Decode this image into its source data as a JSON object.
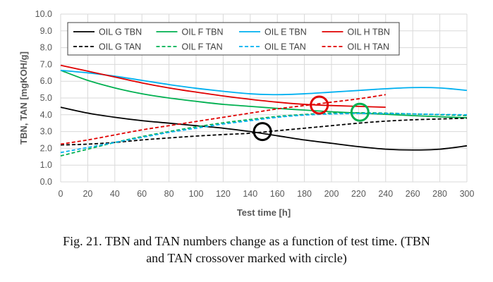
{
  "chart_data": {
    "type": "line",
    "xlabel": "Test time [h]",
    "ylabel": "TBN, TAN [mgKOH/g]",
    "xlim": [
      0,
      300
    ],
    "ylim": [
      0,
      10
    ],
    "xticks": [
      0,
      20,
      40,
      60,
      80,
      100,
      120,
      140,
      160,
      180,
      200,
      220,
      240,
      260,
      280,
      300
    ],
    "yticks": [
      "0.0",
      "1.0",
      "2.0",
      "3.0",
      "4.0",
      "5.0",
      "6.0",
      "7.0",
      "8.0",
      "9.0",
      "10.0"
    ],
    "grid": true,
    "legend_position": "top-left",
    "series": [
      {
        "name": "OIL G TBN",
        "color": "#000000",
        "dash": "solid",
        "x": [
          0,
          20,
          40,
          60,
          80,
          100,
          120,
          140,
          160,
          180,
          200,
          220,
          240,
          260,
          280,
          300
        ],
        "y": [
          4.45,
          4.1,
          3.85,
          3.65,
          3.5,
          3.35,
          3.2,
          3.0,
          2.75,
          2.5,
          2.3,
          2.1,
          1.95,
          1.9,
          1.95,
          2.15
        ]
      },
      {
        "name": "OIL F TBN",
        "color": "#00b050",
        "dash": "solid",
        "x": [
          0,
          20,
          40,
          60,
          80,
          100,
          120,
          140,
          160,
          180,
          200,
          220,
          240,
          260,
          280,
          300
        ],
        "y": [
          6.65,
          6.05,
          5.6,
          5.25,
          5.0,
          4.8,
          4.62,
          4.5,
          4.38,
          4.28,
          4.18,
          4.1,
          4.03,
          3.95,
          3.88,
          3.82
        ]
      },
      {
        "name": "OIL E TBN",
        "color": "#00b0f0",
        "dash": "solid",
        "x": [
          0,
          20,
          40,
          60,
          80,
          100,
          120,
          140,
          160,
          180,
          200,
          220,
          240,
          260,
          280,
          300
        ],
        "y": [
          6.65,
          6.5,
          6.3,
          6.05,
          5.8,
          5.58,
          5.4,
          5.25,
          5.2,
          5.25,
          5.35,
          5.45,
          5.55,
          5.62,
          5.6,
          5.45
        ]
      },
      {
        "name": "OIL H TBN",
        "color": "#e00000",
        "dash": "solid",
        "x": [
          0,
          20,
          40,
          60,
          80,
          100,
          120,
          140,
          160,
          180,
          200,
          220,
          240
        ],
        "y": [
          6.95,
          6.6,
          6.25,
          5.9,
          5.6,
          5.35,
          5.12,
          4.92,
          4.75,
          4.62,
          4.55,
          4.5,
          4.45
        ]
      },
      {
        "name": "OIL G TAN",
        "color": "#000000",
        "dash": "dashed",
        "x": [
          0,
          20,
          40,
          60,
          80,
          100,
          120,
          140,
          160,
          180,
          200,
          220,
          240,
          260,
          280,
          300
        ],
        "y": [
          2.2,
          2.25,
          2.35,
          2.5,
          2.62,
          2.73,
          2.82,
          2.9,
          3.05,
          3.2,
          3.35,
          3.5,
          3.62,
          3.7,
          3.75,
          3.8
        ]
      },
      {
        "name": "OIL F TAN",
        "color": "#00b050",
        "dash": "dashed",
        "x": [
          0,
          20,
          40,
          60,
          80,
          100,
          120,
          140,
          160,
          180,
          200,
          220,
          240,
          260,
          280,
          300
        ],
        "y": [
          1.55,
          1.95,
          2.35,
          2.7,
          3.0,
          3.28,
          3.52,
          3.72,
          3.9,
          4.02,
          4.1,
          4.12,
          4.1,
          4.05,
          4.0,
          3.95
        ]
      },
      {
        "name": "OIL E TAN",
        "color": "#00b0f0",
        "dash": "dashed",
        "x": [
          0,
          20,
          40,
          60,
          80,
          100,
          120,
          140,
          160,
          180,
          200,
          220,
          240,
          260,
          280,
          300
        ],
        "y": [
          1.75,
          2.05,
          2.35,
          2.65,
          2.95,
          3.2,
          3.45,
          3.65,
          3.85,
          3.98,
          4.05,
          4.08,
          4.08,
          4.05,
          4.02,
          4.0
        ]
      },
      {
        "name": "OIL H TAN",
        "color": "#e00000",
        "dash": "dashed",
        "x": [
          0,
          20,
          40,
          60,
          80,
          100,
          120,
          140,
          160,
          180,
          200,
          220,
          240
        ],
        "y": [
          2.25,
          2.5,
          2.8,
          3.1,
          3.35,
          3.6,
          3.85,
          4.1,
          4.35,
          4.55,
          4.75,
          4.95,
          5.2
        ]
      }
    ],
    "annotations": [
      {
        "type": "circle",
        "x": 149,
        "y": 3.0,
        "color": "#000000"
      },
      {
        "type": "circle",
        "x": 191,
        "y": 4.58,
        "color": "#e00000"
      },
      {
        "type": "circle",
        "x": 221,
        "y": 4.15,
        "color": "#00b050"
      }
    ]
  },
  "caption": {
    "line1": "Fig. 21. TBN and TAN numbers change as a function of test time. (TBN",
    "line2": "and TAN crossover marked with circle)"
  }
}
